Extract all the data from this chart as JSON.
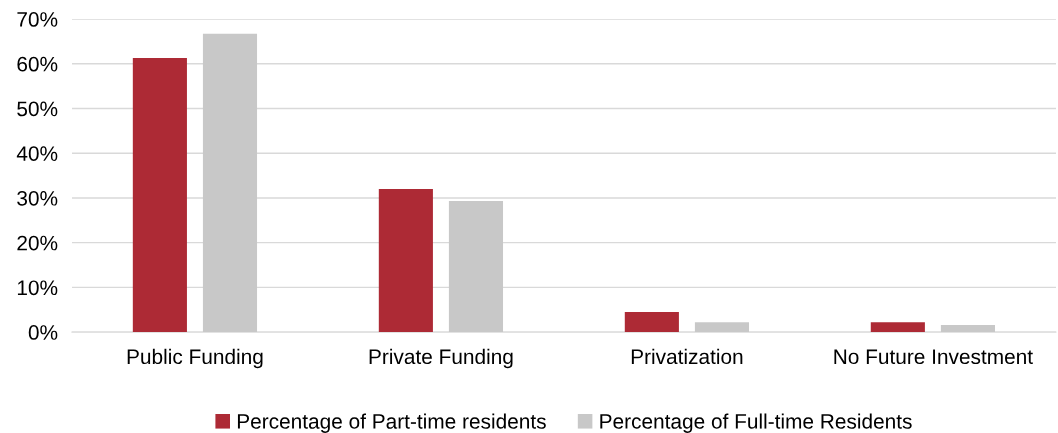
{
  "chart_data": {
    "type": "bar",
    "categories": [
      "Public Funding",
      "Private Funding",
      "Privatization",
      "No Future Investment"
    ],
    "series": [
      {
        "name": "Percentage of Part-time residents",
        "color": "#ad2a35",
        "values": [
          61.3,
          32.0,
          4.5,
          2.2
        ]
      },
      {
        "name": "Percentage of Full-time Residents",
        "color": "#c8c8c8",
        "values": [
          66.7,
          29.3,
          2.2,
          1.6
        ]
      }
    ],
    "ylim": [
      0,
      70
    ],
    "yticks": [
      {
        "value": 0,
        "label": "0%"
      },
      {
        "value": 10,
        "label": "10%"
      },
      {
        "value": 20,
        "label": "20%"
      },
      {
        "value": 30,
        "label": "30%"
      },
      {
        "value": 40,
        "label": "40%"
      },
      {
        "value": 50,
        "label": "50%"
      },
      {
        "value": 60,
        "label": "60%"
      },
      {
        "value": 70,
        "label": "70%"
      }
    ],
    "grid": "y",
    "legend": "bottom"
  }
}
